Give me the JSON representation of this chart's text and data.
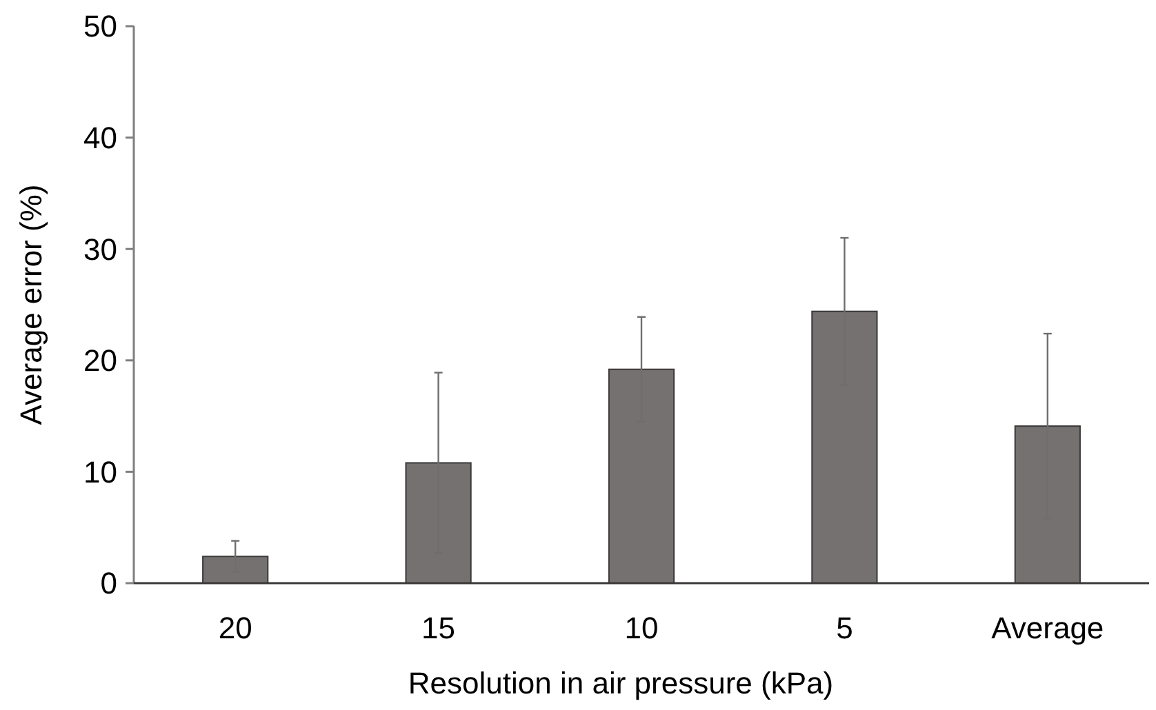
{
  "chart_data": {
    "type": "bar",
    "xlabel": "Resolution in air pressure (kPa)",
    "ylabel": "Average error (%)",
    "categories": [
      "20",
      "15",
      "10",
      "5",
      "Average"
    ],
    "values": [
      2.4,
      10.8,
      19.2,
      24.4,
      14.1
    ],
    "errors": [
      1.4,
      8.1,
      4.7,
      6.6,
      8.3
    ],
    "color": "#767171",
    "ylim": [
      0,
      50
    ],
    "yticks": [
      0,
      10,
      20,
      30,
      40,
      50
    ],
    "grid": false
  }
}
